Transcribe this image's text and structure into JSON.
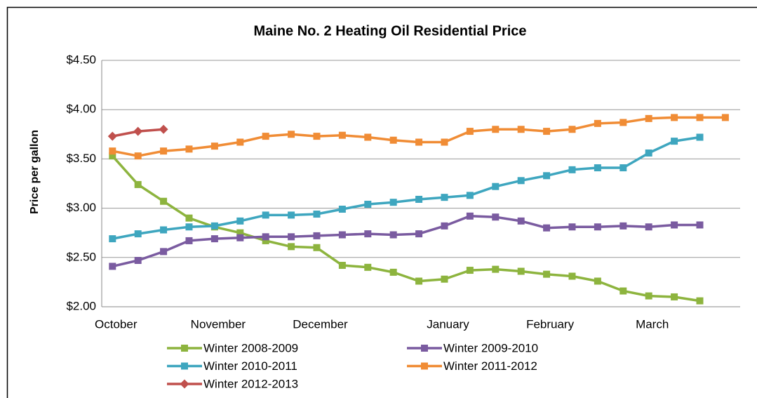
{
  "chart_data": {
    "type": "line",
    "title": "Maine No. 2 Heating Oil Residential Price",
    "y_label": "Price per gallon",
    "categories": [
      "October",
      null,
      null,
      null,
      "November",
      null,
      null,
      null,
      "December",
      null,
      null,
      null,
      null,
      "January",
      null,
      null,
      null,
      "February",
      null,
      null,
      null,
      "March",
      null,
      null,
      null
    ],
    "ylim": [
      2.0,
      4.5
    ],
    "yticks": [
      {
        "value": 2.0,
        "label": "$2.00"
      },
      {
        "value": 2.5,
        "label": "$2.50"
      },
      {
        "value": 3.0,
        "label": "$3.00"
      },
      {
        "value": 3.5,
        "label": "$3.50"
      },
      {
        "value": 4.0,
        "label": "$4.00"
      },
      {
        "value": 4.5,
        "label": "$4.50"
      }
    ],
    "grid": true,
    "legend": "bottom",
    "series": [
      {
        "name": "Winter 2008-2009",
        "color": "#8db43e",
        "marker": "square",
        "values": [
          3.53,
          3.24,
          3.07,
          2.9,
          2.81,
          2.75,
          2.67,
          2.61,
          2.6,
          2.42,
          2.4,
          2.35,
          2.26,
          2.28,
          2.37,
          2.38,
          2.36,
          2.33,
          2.31,
          2.26,
          2.16,
          2.11,
          2.1,
          2.06,
          null
        ]
      },
      {
        "name": "Winter 2009-2010",
        "color": "#7a5ba0",
        "marker": "square",
        "values": [
          2.41,
          2.47,
          2.56,
          2.67,
          2.69,
          2.7,
          2.71,
          2.71,
          2.72,
          2.73,
          2.74,
          2.73,
          2.74,
          2.82,
          2.92,
          2.91,
          2.87,
          2.8,
          2.81,
          2.81,
          2.82,
          2.81,
          2.83,
          2.83,
          null
        ]
      },
      {
        "name": "Winter 2010-2011",
        "color": "#3ea6bf",
        "marker": "square",
        "values": [
          2.69,
          2.74,
          2.78,
          2.81,
          2.82,
          2.87,
          2.93,
          2.93,
          2.94,
          2.99,
          3.04,
          3.06,
          3.09,
          3.11,
          3.13,
          3.22,
          3.28,
          3.33,
          3.39,
          3.41,
          3.41,
          3.56,
          3.68,
          3.72,
          null
        ]
      },
      {
        "name": "Winter 2011-2012",
        "color": "#f08c35",
        "marker": "square",
        "values": [
          3.58,
          3.53,
          3.58,
          3.6,
          3.63,
          3.67,
          3.73,
          3.75,
          3.73,
          3.74,
          3.72,
          3.69,
          3.67,
          3.67,
          3.78,
          3.8,
          3.8,
          3.78,
          3.8,
          3.86,
          3.87,
          3.91,
          3.92,
          3.92,
          3.92
        ]
      },
      {
        "name": "Winter 2012-2013",
        "color": "#c0504d",
        "marker": "diamond",
        "values": [
          3.73,
          3.78,
          3.8,
          null,
          null,
          null,
          null,
          null,
          null,
          null,
          null,
          null,
          null,
          null,
          null,
          null,
          null,
          null,
          null,
          null,
          null,
          null,
          null,
          null,
          null
        ]
      }
    ]
  }
}
